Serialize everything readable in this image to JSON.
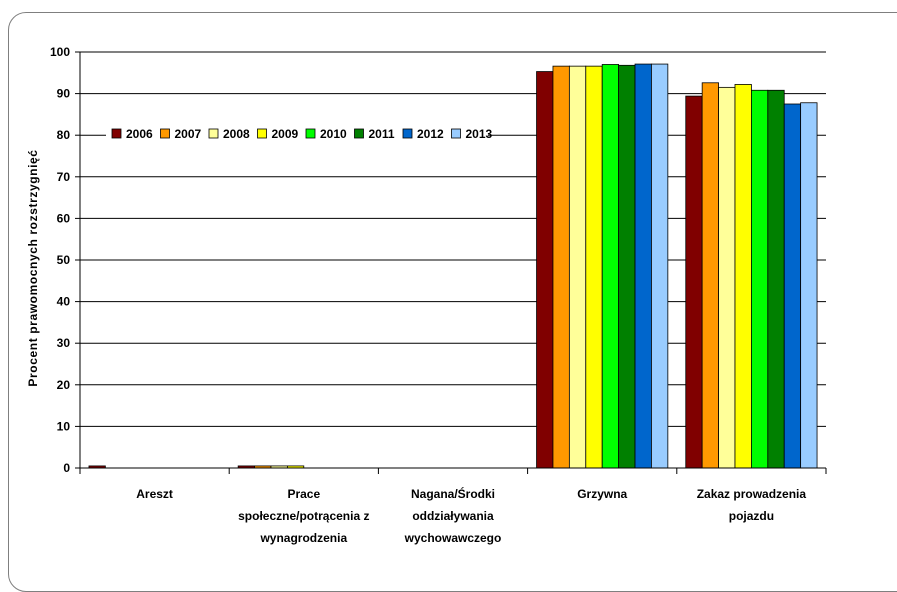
{
  "chart_data": {
    "type": "bar",
    "title": "",
    "xlabel": "",
    "ylabel": "Procent prawomocnych rozstrzygnięć",
    "ylim": [
      0,
      100
    ],
    "yticks": [
      0,
      10,
      20,
      30,
      40,
      50,
      60,
      70,
      80,
      90,
      100
    ],
    "grid": true,
    "legend_position": "top-left, inside plot",
    "categories": [
      [
        "Areszt"
      ],
      [
        "Prace",
        "społeczne/potrącenia z",
        "wynagrodzenia"
      ],
      [
        "Nagana/Środki",
        "oddziaływania",
        "wychowawczego"
      ],
      [
        "Grzywna"
      ],
      [
        "Zakaz prowadzenia",
        "pojazdu"
      ]
    ],
    "series": [
      {
        "name": "2006",
        "color": "#800000",
        "values": [
          0.5,
          0.5,
          0,
          95.3,
          89.4
        ]
      },
      {
        "name": "2007",
        "color": "#ff9900",
        "values": [
          0,
          0.5,
          0,
          96.6,
          92.6
        ]
      },
      {
        "name": "2008",
        "color": "#ffff99",
        "values": [
          0,
          0.5,
          0,
          96.6,
          91.5
        ]
      },
      {
        "name": "2009",
        "color": "#ffff00",
        "values": [
          0,
          0.5,
          0,
          96.6,
          92.2
        ]
      },
      {
        "name": "2010",
        "color": "#00ff00",
        "values": [
          0,
          0,
          0,
          97.0,
          90.8
        ]
      },
      {
        "name": "2011",
        "color": "#008000",
        "values": [
          0,
          0,
          0,
          96.8,
          90.8
        ]
      },
      {
        "name": "2012",
        "color": "#0066cc",
        "values": [
          0,
          0,
          0,
          97.1,
          87.5
        ]
      },
      {
        "name": "2013",
        "color": "#99ccff",
        "values": [
          0,
          0,
          0,
          97.1,
          87.8
        ]
      }
    ]
  }
}
